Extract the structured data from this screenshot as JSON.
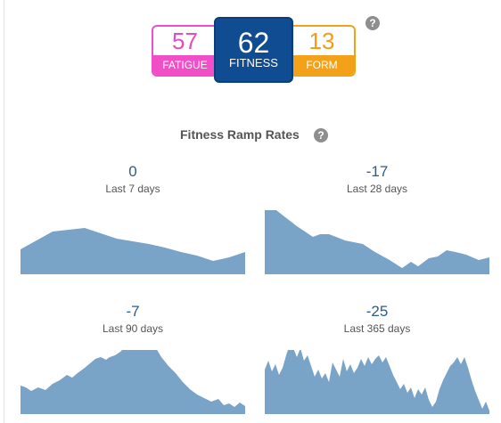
{
  "metrics": {
    "fatigue": {
      "value": "57",
      "label": "FATIGUE",
      "color": "#f04fc8"
    },
    "fitness": {
      "value": "62",
      "label": "FITNESS",
      "color": "#0f4c91"
    },
    "form": {
      "value": "13",
      "label": "FORM",
      "color": "#f4a11a"
    }
  },
  "help_icon": "?",
  "ramp": {
    "title": "Fitness Ramp Rates",
    "fill_color": "#7aa3c8",
    "panels": [
      {
        "value": "0",
        "period": "Last 7 days"
      },
      {
        "value": "-17",
        "period": "Last 28 days"
      },
      {
        "value": "-7",
        "period": "Last 90 days"
      },
      {
        "value": "-25",
        "period": "Last 365 days"
      }
    ]
  }
}
